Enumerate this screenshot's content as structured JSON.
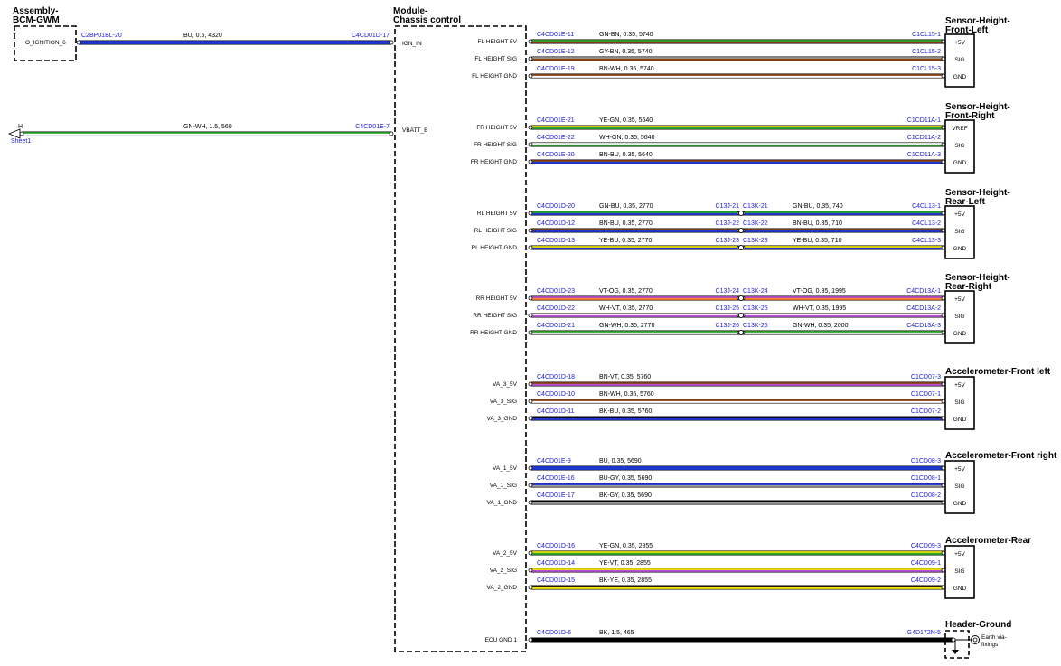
{
  "components": {
    "bcm_title_1": "Assembly-",
    "bcm_title_2": "BCM-GWM",
    "bcm_pin": "O_IGNITION_6",
    "module_title_1": "Module-",
    "module_title_2": "Chassis control",
    "sheet_ref_letter": "H",
    "sheet_ref_name": "Sheet1"
  },
  "module_inputs": [
    {
      "id": "ign",
      "pin": "IGN_IN",
      "from_conn": "C2BP01BL-20",
      "to_conn": "C4CD01D-17",
      "spec": "BU,  0.5,  4320",
      "colors": [
        "#1f37d6",
        "#1f37d6"
      ]
    },
    {
      "id": "vbatt",
      "pin": "VBATT_B",
      "from_conn": "",
      "to_conn": "C4CD01E-7",
      "spec": "GN-WH,  1.5,  560",
      "colors": [
        "#2aa82a",
        "#ffffff"
      ]
    }
  ],
  "groups": [
    {
      "id": "fl",
      "title_1": "Sensor-Height-",
      "title_2": "Front-Left",
      "wires": [
        {
          "pin": "FL HEIGHT 5V",
          "conn1": "C4CD01E-11",
          "spec1": "GN-BN,  0.35,  5740",
          "conn_end": "C1CL15-1",
          "label": "+5V",
          "colors": [
            "#2aa82a",
            "#8b4513"
          ]
        },
        {
          "pin": "FL HEIGHT SIG",
          "conn1": "C4CD01E-12",
          "spec1": "GY-BN,  0.35,  5740",
          "conn_end": "C1CL15-2",
          "label": "SIG",
          "colors": [
            "#9a9a9a",
            "#8b4513"
          ]
        },
        {
          "pin": "FL HEIGHT GND",
          "conn1": "C4CD01E-19",
          "spec1": "BN-WH,  0.35,  5740",
          "conn_end": "C1CL15-3",
          "label": "GND",
          "colors": [
            "#8b4513",
            "#ffffff"
          ]
        }
      ]
    },
    {
      "id": "fr",
      "title_1": "Sensor-Height-",
      "title_2": "Front-Right",
      "wires": [
        {
          "pin": "FR HEIGHT 5V",
          "conn1": "C4CD01E-21",
          "spec1": "YE-GN,  0.35,  5640",
          "conn_end": "C1CD11A-1",
          "label": "VREF",
          "colors": [
            "#f2e600",
            "#2aa82a"
          ]
        },
        {
          "pin": "FR HEIGHT SIG",
          "conn1": "C4CD01E-22",
          "spec1": "WH-GN,  0.35,  5640",
          "conn_end": "C1CD11A-2",
          "label": "SIG",
          "colors": [
            "#ffffff",
            "#2aa82a"
          ]
        },
        {
          "pin": "FR HEIGHT GND",
          "conn1": "C4CD01E-20",
          "spec1": "BN-BU,  0.35,  5640",
          "conn_end": "C1CD11A-3",
          "label": "GND",
          "colors": [
            "#8b4513",
            "#1f37d6"
          ]
        }
      ]
    },
    {
      "id": "rl",
      "title_1": "Sensor-Height-",
      "title_2": "Rear-Left",
      "wires": [
        {
          "pin": "RL HEIGHT 5V",
          "conn1": "C4CD01D-20",
          "spec1": "GN-BU,  0.35,  2770",
          "splice_a": "C13J-21",
          "splice_b": "C13K-21",
          "spec2": "GN-BU,  0.35,  740",
          "conn_end": "C4CL13-1",
          "label": "+5V",
          "colors": [
            "#2aa82a",
            "#1f37d6"
          ]
        },
        {
          "pin": "RL HEIGHT SIG",
          "conn1": "C4CD01D-12",
          "spec1": "BN-BU,  0.35,  2770",
          "splice_a": "C13J-22",
          "splice_b": "C13K-22",
          "spec2": "BN-BU,  0.35,  710",
          "conn_end": "C4CL13-2",
          "label": "SIG",
          "colors": [
            "#8b4513",
            "#1f37d6"
          ]
        },
        {
          "pin": "RL HEIGHT GND",
          "conn1": "C4CD01D-13",
          "spec1": "YE-BU,  0.35,  2770",
          "splice_a": "C13J-23",
          "splice_b": "C13K-23",
          "spec2": "YE-BU,  0.35,  710",
          "conn_end": "C4CL13-3",
          "label": "GND",
          "colors": [
            "#f2e600",
            "#1f37d6"
          ]
        }
      ]
    },
    {
      "id": "rr",
      "title_1": "Sensor-Height-",
      "title_2": "Rear-Right",
      "wires": [
        {
          "pin": "RR HEIGHT 5V",
          "conn1": "C4CD01D-23",
          "spec1": "VT-OG,  0.35,  2770",
          "splice_a": "C13J-24",
          "splice_b": "C13K-24",
          "spec2": "VT-OG,  0.35,  1995",
          "conn_end": "C4CD13A-1",
          "label": "+5V",
          "colors": [
            "#b84fd6",
            "#ff7f27"
          ]
        },
        {
          "pin": "RR HEIGHT SIG",
          "conn1": "C4CD01D-22",
          "spec1": "WH-VT,  0.35,  2770",
          "splice_a": "C13J-25",
          "splice_b": "C13K-25",
          "spec2": "WH-VT,  0.35,  1995",
          "conn_end": "C4CD13A-2",
          "label": "SIG",
          "colors": [
            "#ffffff",
            "#b84fd6"
          ]
        },
        {
          "pin": "RR HEIGHT GND",
          "conn1": "C4CD01D-21",
          "spec1": "GN-WH,  0.35,  2770",
          "splice_a": "C13J-26",
          "splice_b": "C13K-26",
          "spec2": "GN-WH,  0.35,  2000",
          "conn_end": "C4CD13A-3",
          "label": "GND",
          "colors": [
            "#2aa82a",
            "#ffffff"
          ]
        }
      ]
    },
    {
      "id": "afl",
      "title_1": "Accelerometer-Front left",
      "title_2": "",
      "wires": [
        {
          "pin": "VA_3_5V",
          "conn1": "C4CD01D-18",
          "spec1": "BN-VT,  0.35,  5760",
          "conn_end": "C1CD07-3",
          "label": "+5V",
          "colors": [
            "#8b4513",
            "#b84fd6"
          ]
        },
        {
          "pin": "VA_3_SIG",
          "conn1": "C4CD01D-10",
          "spec1": "BN-WH,  0.35,  5760",
          "conn_end": "C1CD07-1",
          "label": "SIG",
          "colors": [
            "#8b4513",
            "#ffffff"
          ]
        },
        {
          "pin": "VA_3_GND",
          "conn1": "C4CD01D-11",
          "spec1": "BK-BU,  0.35,  5760",
          "conn_end": "C1CD07-2",
          "label": "GND",
          "colors": [
            "#000000",
            "#1f37d6"
          ]
        }
      ]
    },
    {
      "id": "afr",
      "title_1": "Accelerometer-Front right",
      "title_2": "",
      "wires": [
        {
          "pin": "VA_1_5V",
          "conn1": "C4CD01E-9",
          "spec1": "BU,  0.35,  5690",
          "conn_end": "C1CD08-3",
          "label": "+5V",
          "colors": [
            "#1f37d6",
            "#1f37d6"
          ]
        },
        {
          "pin": "VA_1_SIG",
          "conn1": "C4CD01E-16",
          "spec1": "BU-GY,  0.35,  5690",
          "conn_end": "C1CD08-1",
          "label": "SIG",
          "colors": [
            "#1f37d6",
            "#9a9a9a"
          ]
        },
        {
          "pin": "VA_1_GND",
          "conn1": "C4CD01E-17",
          "spec1": "BK-GY,  0.35,  5690",
          "conn_end": "C1CD08-2",
          "label": "GND",
          "colors": [
            "#000000",
            "#9a9a9a"
          ]
        }
      ]
    },
    {
      "id": "ar",
      "title_1": "Accelerometer-Rear",
      "title_2": "",
      "wires": [
        {
          "pin": "VA_2_5V",
          "conn1": "C4CD01D-16",
          "spec1": "YE-GN,  0.35,  2855",
          "conn_end": "C4CD09-3",
          "label": "+5V",
          "colors": [
            "#f2e600",
            "#2aa82a"
          ]
        },
        {
          "pin": "VA_2_SIG",
          "conn1": "C4CD01D-14",
          "spec1": "YE-VT,  0.35,  2855",
          "conn_end": "C4CD09-1",
          "label": "SIG",
          "colors": [
            "#f2e600",
            "#b84fd6"
          ]
        },
        {
          "pin": "VA_2_GND",
          "conn1": "C4CD01D-15",
          "spec1": "BK-YE,  0.35,  2855",
          "conn_end": "C4CD09-2",
          "label": "GND",
          "colors": [
            "#000000",
            "#f2e600"
          ]
        }
      ]
    }
  ],
  "ground": {
    "title": "Header-Ground",
    "pin": "ECU GND 1",
    "conn1": "C4CD01D-6",
    "spec1": "BK,  1.5,  465",
    "conn_end": "G4D172N-5",
    "earth_label_1": "Earth via-",
    "earth_label_2": "fixings",
    "colors": [
      "#000000",
      "#000000"
    ]
  }
}
